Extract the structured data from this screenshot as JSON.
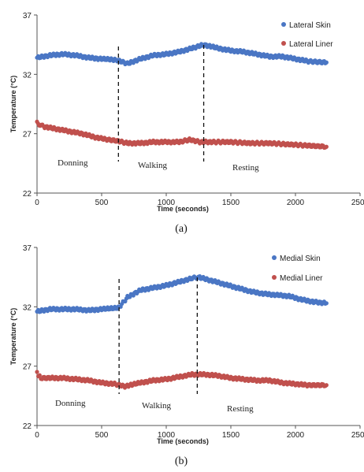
{
  "chart_data": [
    {
      "type": "scatter",
      "panel_label": "(a)",
      "xlabel": "Time (seconds)",
      "ylabel": "Temperature (°C)",
      "xlim": [
        0,
        2500
      ],
      "ylim": [
        22,
        37
      ],
      "xticks": [
        0,
        500,
        1000,
        1500,
        2000,
        2500
      ],
      "yticks": [
        22,
        27,
        32,
        37
      ],
      "grid": false,
      "legend_position": "top-right",
      "series": [
        {
          "name": "Lateral Skin",
          "color": "#4a76c4",
          "points": [
            [
              0,
              33.4
            ],
            [
              100,
              33.6
            ],
            [
              200,
              33.7
            ],
            [
              300,
              33.6
            ],
            [
              400,
              33.4
            ],
            [
              500,
              33.3
            ],
            [
              620,
              33.2
            ],
            [
              700,
              32.9
            ],
            [
              800,
              33.3
            ],
            [
              900,
              33.6
            ],
            [
              1000,
              33.7
            ],
            [
              1100,
              33.9
            ],
            [
              1200,
              34.2
            ],
            [
              1290,
              34.5
            ],
            [
              1400,
              34.2
            ],
            [
              1500,
              34.0
            ],
            [
              1600,
              33.9
            ],
            [
              1700,
              33.7
            ],
            [
              1800,
              33.5
            ],
            [
              1900,
              33.5
            ],
            [
              2000,
              33.3
            ],
            [
              2100,
              33.1
            ],
            [
              2240,
              33.0
            ]
          ]
        },
        {
          "name": "Lateral Liner",
          "color": "#c0504d",
          "points": [
            [
              0,
              27.9
            ],
            [
              50,
              27.6
            ],
            [
              150,
              27.4
            ],
            [
              250,
              27.2
            ],
            [
              350,
              27.0
            ],
            [
              450,
              26.7
            ],
            [
              550,
              26.5
            ],
            [
              620,
              26.4
            ],
            [
              700,
              26.2
            ],
            [
              800,
              26.2
            ],
            [
              900,
              26.3
            ],
            [
              1000,
              26.3
            ],
            [
              1100,
              26.3
            ],
            [
              1180,
              26.5
            ],
            [
              1260,
              26.3
            ],
            [
              1350,
              26.3
            ],
            [
              1500,
              26.3
            ],
            [
              1650,
              26.2
            ],
            [
              1800,
              26.2
            ],
            [
              1950,
              26.1
            ],
            [
              2100,
              26.0
            ],
            [
              2240,
              25.9
            ]
          ]
        }
      ],
      "phase_markers": [
        630,
        1290
      ],
      "phase_labels": [
        "Donning",
        "Walking",
        "Resting"
      ]
    },
    {
      "type": "scatter",
      "panel_label": "(b)",
      "xlabel": "Time (seconds)",
      "ylabel": "Temperature (°C)",
      "xlim": [
        0,
        2500
      ],
      "ylim": [
        22,
        37
      ],
      "xticks": [
        0,
        500,
        1000,
        1500,
        2000,
        2500
      ],
      "yticks": [
        22,
        27,
        32,
        37
      ],
      "grid": false,
      "legend_position": "top-right",
      "series": [
        {
          "name": "Medial Skin",
          "color": "#4a76c4",
          "points": [
            [
              0,
              31.6
            ],
            [
              100,
              31.8
            ],
            [
              200,
              31.8
            ],
            [
              300,
              31.8
            ],
            [
              400,
              31.7
            ],
            [
              500,
              31.8
            ],
            [
              630,
              31.9
            ],
            [
              700,
              32.8
            ],
            [
              800,
              33.4
            ],
            [
              900,
              33.6
            ],
            [
              1000,
              33.8
            ],
            [
              1100,
              34.1
            ],
            [
              1200,
              34.4
            ],
            [
              1250,
              34.5
            ],
            [
              1350,
              34.2
            ],
            [
              1450,
              33.9
            ],
            [
              1550,
              33.6
            ],
            [
              1650,
              33.3
            ],
            [
              1750,
              33.1
            ],
            [
              1850,
              33.0
            ],
            [
              1950,
              32.9
            ],
            [
              2050,
              32.6
            ],
            [
              2150,
              32.4
            ],
            [
              2240,
              32.3
            ]
          ]
        },
        {
          "name": "Medial Liner",
          "color": "#c0504d",
          "points": [
            [
              0,
              26.4
            ],
            [
              30,
              26.0
            ],
            [
              100,
              26.0
            ],
            [
              200,
              26.0
            ],
            [
              300,
              25.9
            ],
            [
              400,
              25.8
            ],
            [
              500,
              25.6
            ],
            [
              600,
              25.5
            ],
            [
              680,
              25.3
            ],
            [
              800,
              25.6
            ],
            [
              900,
              25.8
            ],
            [
              1000,
              25.9
            ],
            [
              1100,
              26.1
            ],
            [
              1200,
              26.3
            ],
            [
              1300,
              26.3
            ],
            [
              1400,
              26.2
            ],
            [
              1500,
              26.0
            ],
            [
              1600,
              25.9
            ],
            [
              1700,
              25.8
            ],
            [
              1800,
              25.8
            ],
            [
              1900,
              25.6
            ],
            [
              2000,
              25.5
            ],
            [
              2100,
              25.4
            ],
            [
              2240,
              25.4
            ]
          ]
        }
      ],
      "phase_markers": [
        635,
        1240
      ],
      "phase_labels": [
        "Donning",
        "Walking",
        "Resting"
      ]
    }
  ]
}
